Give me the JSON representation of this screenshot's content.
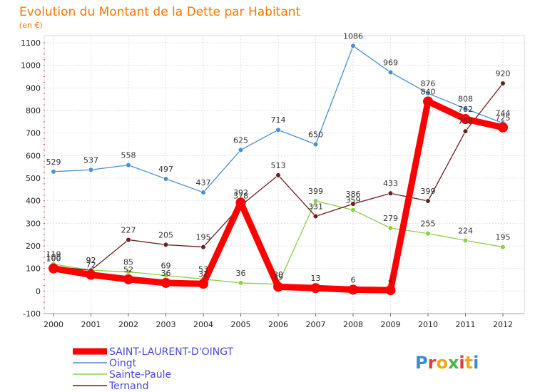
{
  "chart_data": {
    "type": "line",
    "title": "Evolution du Montant de la Dette par Habitant",
    "subtitle": "(en €)",
    "x": [
      "2000",
      "2001",
      "2002",
      "2003",
      "2004",
      "2005",
      "2006",
      "2007",
      "2008",
      "2009",
      "2010",
      "2011",
      "2012"
    ],
    "ylim": [
      -100,
      1100
    ],
    "yticks": [
      -100,
      0,
      100,
      200,
      300,
      400,
      500,
      600,
      700,
      800,
      900,
      1000,
      1100
    ],
    "grid": true,
    "series": [
      {
        "name": "SAINT-LAURENT-D'OINGT",
        "color": "#ff0000",
        "values": [
          100,
          72,
          52,
          36,
          32,
          392,
          19,
          13,
          6,
          4,
          840,
          762,
          725
        ]
      },
      {
        "name": "Oingt",
        "color": "#4a8fcf",
        "values": [
          529,
          537,
          558,
          497,
          437,
          625,
          714,
          650,
          1086,
          969,
          876,
          808,
          744
        ]
      },
      {
        "name": "Sainte-Paule",
        "color": "#8ccf4a",
        "values": [
          119,
          92,
          85,
          69,
          53,
          36,
          30,
          399,
          359,
          279,
          255,
          224,
          195
        ]
      },
      {
        "name": "Ternand",
        "color": "#6b1f1f",
        "values": [
          108,
          92,
          227,
          205,
          195,
          378,
          513,
          331,
          386,
          433,
          399,
          708,
          920
        ]
      }
    ],
    "logo": "Proxiti"
  }
}
